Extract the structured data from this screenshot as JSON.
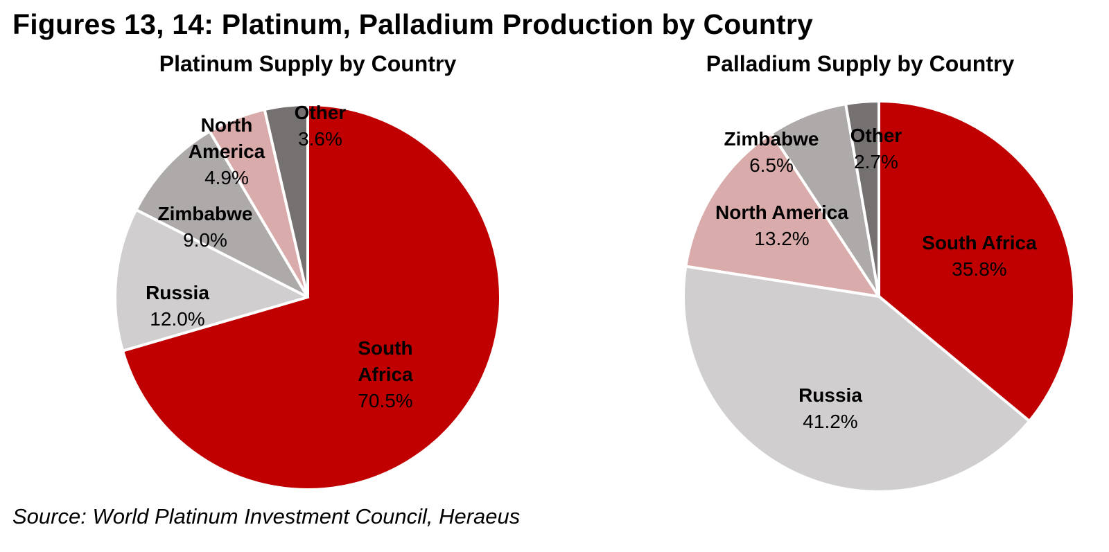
{
  "figure_title": "Figures 13, 14: Platinum, Palladium Production by Country",
  "source": "Source: World Platinum Investment Council, Heraeus",
  "colors": {
    "South Africa": "#c00000",
    "Russia": "#d0cece",
    "Zimbabwe": "#aeaaaa",
    "North America": "#d9abab",
    "Other": "#767171"
  },
  "chart_data": [
    {
      "type": "pie",
      "title": "Platinum Supply by Country",
      "slices": [
        {
          "label": "South Africa",
          "value": 70.5,
          "value_label": "70.5%",
          "display_lines": [
            "South",
            "Africa"
          ]
        },
        {
          "label": "Russia",
          "value": 12.0,
          "value_label": "12.0%",
          "display_lines": [
            "Russia"
          ]
        },
        {
          "label": "Zimbabwe",
          "value": 9.0,
          "value_label": "9.0%",
          "display_lines": [
            "Zimbabwe"
          ]
        },
        {
          "label": "North America",
          "value": 4.9,
          "value_label": "4.9%",
          "display_lines": [
            "North",
            "America"
          ]
        },
        {
          "label": "Other",
          "value": 3.6,
          "value_label": "3.6%",
          "display_lines": [
            "Other"
          ]
        }
      ]
    },
    {
      "type": "pie",
      "title": "Palladium Supply by Country",
      "slices": [
        {
          "label": "South Africa",
          "value": 35.8,
          "value_label": "35.8%",
          "display_lines": [
            "South Africa"
          ]
        },
        {
          "label": "Russia",
          "value": 41.2,
          "value_label": "41.2%",
          "display_lines": [
            "Russia"
          ]
        },
        {
          "label": "North America",
          "value": 13.2,
          "value_label": "13.2%",
          "display_lines": [
            "North America"
          ]
        },
        {
          "label": "Zimbabwe",
          "value": 6.5,
          "value_label": "6.5%",
          "display_lines": [
            "Zimbabwe"
          ]
        },
        {
          "label": "Other",
          "value": 2.7,
          "value_label": "2.7%",
          "display_lines": [
            "Other"
          ]
        }
      ]
    }
  ]
}
